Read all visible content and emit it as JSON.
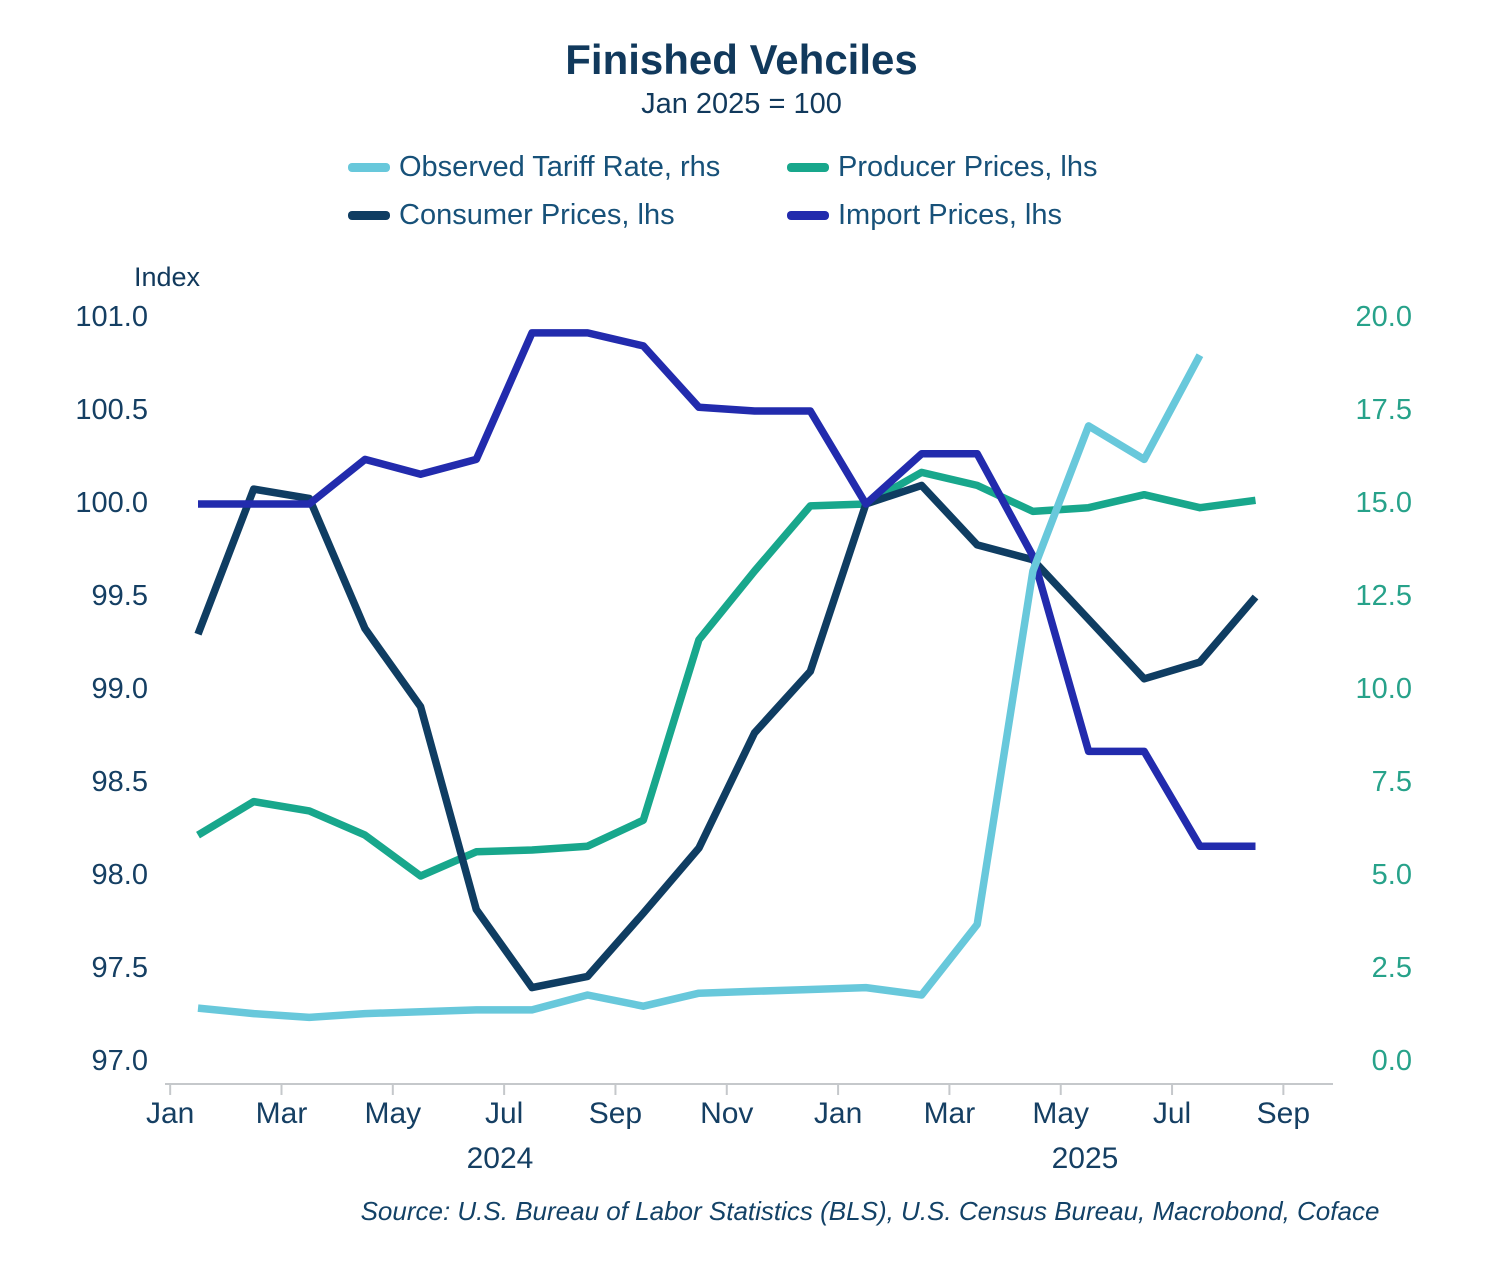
{
  "title": "Finished Vehciles",
  "subtitle": "Jan 2025 = 100",
  "legend": {
    "items": [
      {
        "label": "Observed Tariff Rate, rhs",
        "color": "#68c8db",
        "key": "observed_tariff_rate"
      },
      {
        "label": "Producer Prices, lhs",
        "color": "#18a78c",
        "key": "producer_prices"
      },
      {
        "label": "Consumer Prices, lhs",
        "color": "#0f3d62",
        "key": "consumer_prices"
      },
      {
        "label": "Import Prices, lhs",
        "color": "#222bad",
        "key": "import_prices"
      }
    ]
  },
  "left_axis": {
    "label": "Index",
    "ticks": [
      "101.0",
      "100.5",
      "100.0",
      "99.5",
      "99.0",
      "98.5",
      "98.0",
      "97.5",
      "97.0"
    ],
    "min": 97.0,
    "max": 101.0
  },
  "right_axis": {
    "ticks": [
      "20.0",
      "17.5",
      "15.0",
      "12.5",
      "10.0",
      "7.5",
      "5.0",
      "2.5",
      "0.0"
    ],
    "min": 0.0,
    "max": 20.0
  },
  "x_axis": {
    "tick_labels": [
      "Jan",
      "Mar",
      "May",
      "Jul",
      "Sep",
      "Nov",
      "Jan",
      "Mar",
      "May",
      "Jul",
      "Sep"
    ],
    "year_labels": [
      "2024",
      "2025"
    ]
  },
  "source": "Source: U.S. Bureau of Labor Statistics (BLS), U.S. Census Bureau, Macrobond, Coface",
  "chart_data": {
    "type": "line",
    "x": [
      "Jan 2024",
      "Feb 2024",
      "Mar 2024",
      "Apr 2024",
      "May 2024",
      "Jun 2024",
      "Jul 2024",
      "Aug 2024",
      "Sep 2024",
      "Oct 2024",
      "Nov 2024",
      "Dec 2024",
      "Jan 2025",
      "Feb 2025",
      "Mar 2025",
      "Apr 2025",
      "May 2025",
      "Jun 2025",
      "Jul 2025",
      "Aug 2025",
      "Sep 2025"
    ],
    "title": "Finished Vehciles",
    "subtitle": "Jan 2025 = 100",
    "ylabel_left": "Index",
    "ylim_left": [
      97.0,
      101.0
    ],
    "ylim_right": [
      0.0,
      20.0
    ],
    "grid": false,
    "legend_position": "top",
    "series": [
      {
        "name": "Producer Prices, lhs",
        "axis": "lhs",
        "color": "#18a78c",
        "values": [
          98.22,
          98.4,
          98.35,
          98.22,
          98.0,
          98.13,
          98.14,
          98.16,
          98.3,
          99.27,
          99.64,
          99.99,
          100.0,
          100.17,
          100.1,
          99.96,
          99.98,
          100.05,
          99.98,
          100.02,
          null
        ]
      },
      {
        "name": "Consumer Prices, lhs",
        "axis": "lhs",
        "color": "#0f3d62",
        "values": [
          99.3,
          100.08,
          100.03,
          99.33,
          98.91,
          97.82,
          97.4,
          97.46,
          97.8,
          98.15,
          98.77,
          99.1,
          100.0,
          100.1,
          99.78,
          99.7,
          99.38,
          99.06,
          99.15,
          99.5,
          null
        ]
      },
      {
        "name": "Import Prices, lhs",
        "axis": "lhs",
        "color": "#222bad",
        "values": [
          100.0,
          100.0,
          100.0,
          100.24,
          100.16,
          100.24,
          100.92,
          100.92,
          100.85,
          100.52,
          100.5,
          100.5,
          100.0,
          100.27,
          100.27,
          99.72,
          98.67,
          98.67,
          98.16,
          98.16,
          null
        ]
      },
      {
        "name": "Observed Tariff Rate, rhs",
        "axis": "rhs",
        "color": "#68c8db",
        "values": [
          1.45,
          1.3,
          1.2,
          1.3,
          1.35,
          1.4,
          1.4,
          1.8,
          1.5,
          1.85,
          1.9,
          1.95,
          2.0,
          1.8,
          3.7,
          13.2,
          17.1,
          16.2,
          19.0,
          null,
          null
        ]
      }
    ]
  }
}
